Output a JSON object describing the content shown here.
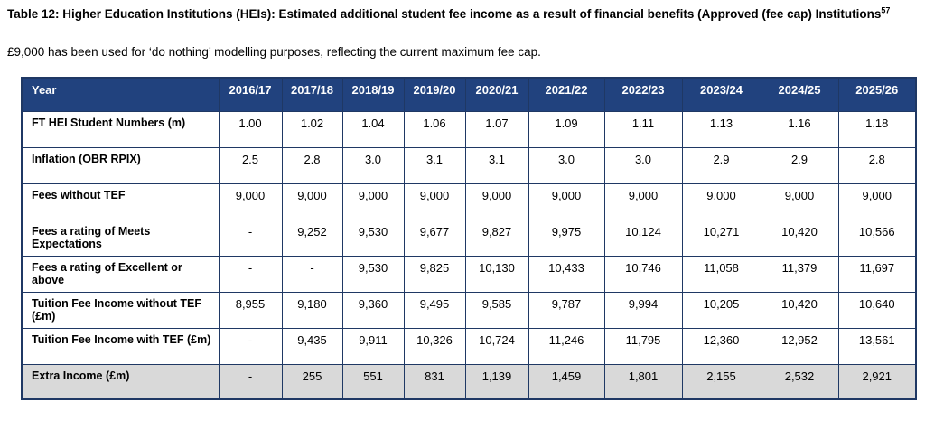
{
  "document": {
    "title": "Table 12: Higher Education Institutions (HEIs): Estimated additional student fee income as a result of financial benefits (Approved (fee cap) Institutions",
    "title_footnote": "57",
    "subtitle": "£9,000 has been used for ‘do nothing’ modelling purposes, reflecting the current maximum fee cap."
  },
  "colors": {
    "header_bg": "#21427E",
    "header_text": "#FFFFFF",
    "border": "#1F3864",
    "highlight_row_bg": "#D9D9D9"
  },
  "table": {
    "columns": [
      "Year",
      "2016/17",
      "2017/18",
      "2018/19",
      "2019/20",
      "2020/21",
      "2021/22",
      "2022/23",
      "2023/24",
      "2024/25",
      "2025/26"
    ],
    "rows": [
      {
        "label": "FT HEI Student Numbers (m)",
        "values": [
          "1.00",
          "1.02",
          "1.04",
          "1.06",
          "1.07",
          "1.09",
          "1.11",
          "1.13",
          "1.16",
          "1.18"
        ],
        "highlight": false
      },
      {
        "label": "Inflation (OBR RPIX)",
        "values": [
          "2.5",
          "2.8",
          "3.0",
          "3.1",
          "3.1",
          "3.0",
          "3.0",
          "2.9",
          "2.9",
          "2.8"
        ],
        "highlight": false
      },
      {
        "label": "Fees without TEF",
        "values": [
          "9,000",
          "9,000",
          "9,000",
          "9,000",
          "9,000",
          "9,000",
          "9,000",
          "9,000",
          "9,000",
          "9,000"
        ],
        "highlight": false
      },
      {
        "label": "Fees a rating of Meets Expectations",
        "values": [
          "-",
          "9,252",
          "9,530",
          "9,677",
          "9,827",
          "9,975",
          "10,124",
          "10,271",
          "10,420",
          "10,566"
        ],
        "highlight": false
      },
      {
        "label": "Fees a rating of Excellent or above",
        "values": [
          "-",
          "-",
          "9,530",
          "9,825",
          "10,130",
          "10,433",
          "10,746",
          "11,058",
          "11,379",
          "11,697"
        ],
        "highlight": false
      },
      {
        "label": "Tuition Fee Income without TEF (£m)",
        "values": [
          "8,955",
          "9,180",
          "9,360",
          "9,495",
          "9,585",
          "9,787",
          "9,994",
          "10,205",
          "10,420",
          "10,640"
        ],
        "highlight": false
      },
      {
        "label": "Tuition Fee Income with TEF (£m)",
        "values": [
          "-",
          "9,435",
          "9,911",
          "10,326",
          "10,724",
          "11,246",
          "11,795",
          "12,360",
          "12,952",
          "13,561"
        ],
        "highlight": false
      },
      {
        "label": "Extra Income (£m)",
        "values": [
          "-",
          "255",
          "551",
          "831",
          "1,139",
          "1,459",
          "1,801",
          "2,155",
          "2,532",
          "2,921"
        ],
        "highlight": true
      }
    ]
  }
}
